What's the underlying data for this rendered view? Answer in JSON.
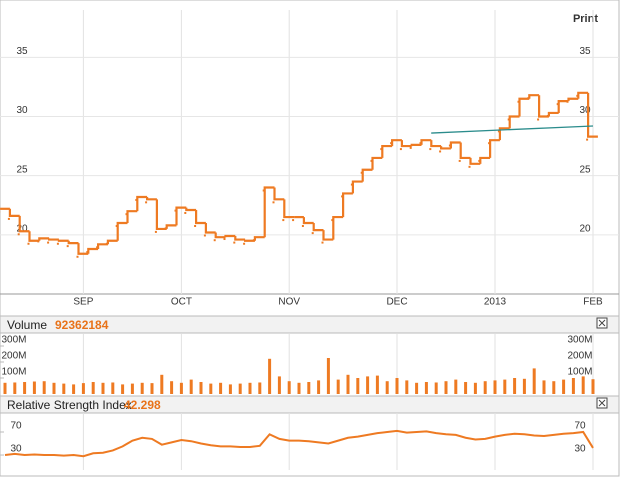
{
  "print_label": "Print",
  "chart_data": [
    {
      "type": "ohlc-step",
      "color": "#ee7a22",
      "categories": [
        null,
        null,
        null,
        null,
        null,
        null,
        null,
        null,
        "SEP",
        null,
        null,
        null,
        null,
        null,
        null,
        null,
        null,
        null,
        "OCT",
        null,
        null,
        null,
        null,
        null,
        null,
        null,
        null,
        null,
        null,
        "NOV",
        null,
        null,
        null,
        null,
        null,
        null,
        null,
        null,
        null,
        null,
        "DEC",
        null,
        null,
        null,
        null,
        null,
        null,
        null,
        null,
        null,
        "2013",
        null,
        null,
        null,
        null,
        null,
        null,
        null,
        null,
        null,
        "FEB"
      ],
      "values": [
        22.2,
        21.6,
        20.3,
        19.5,
        19.7,
        19.6,
        19.5,
        19.3,
        18.4,
        18.8,
        19.2,
        19.5,
        21.0,
        22.0,
        23.2,
        23.0,
        20.5,
        20.8,
        22.3,
        22.1,
        21.0,
        20.2,
        19.8,
        19.9,
        19.6,
        19.5,
        19.8,
        24.0,
        23.0,
        21.5,
        21.5,
        21.0,
        20.4,
        19.6,
        21.5,
        23.5,
        24.5,
        25.5,
        26.5,
        27.5,
        28.0,
        27.5,
        27.6,
        28.0,
        27.5,
        27.3,
        27.8,
        26.5,
        26.0,
        26.5,
        28.0,
        29.0,
        30.0,
        31.5,
        31.8,
        30.0,
        30.3,
        31.3,
        31.5,
        32.0,
        28.3
      ],
      "trendline": {
        "values": [
          28.6,
          29.2
        ],
        "color": "#2b8c8c"
      },
      "ylim": [
        15,
        39
      ],
      "yticks": [
        20,
        25,
        30,
        35
      ],
      "grid": true
    },
    {
      "type": "bar",
      "title": "Volume",
      "color": "#ee7a22",
      "values": [
        70000000,
        72000000,
        75000000,
        78000000,
        80000000,
        70000000,
        65000000,
        60000000,
        68000000,
        75000000,
        70000000,
        72000000,
        60000000,
        65000000,
        70000000,
        68000000,
        120000000,
        80000000,
        70000000,
        90000000,
        75000000,
        65000000,
        70000000,
        60000000,
        65000000,
        70000000,
        72000000,
        220000000,
        110000000,
        80000000,
        70000000,
        75000000,
        85000000,
        225000000,
        90000000,
        120000000,
        100000000,
        110000000,
        115000000,
        80000000,
        100000000,
        85000000,
        70000000,
        75000000,
        72000000,
        80000000,
        90000000,
        75000000,
        70000000,
        80000000,
        85000000,
        90000000,
        100000000,
        95000000,
        160000000,
        85000000,
        80000000,
        90000000,
        100000000,
        110000000,
        92362184
      ],
      "ylim": [
        0,
        375000000
      ],
      "yticks": [
        {
          "value": 100000000,
          "label": "100M"
        },
        {
          "value": 200000000,
          "label": "200M"
        },
        {
          "value": 300000000,
          "label": "300M"
        }
      ]
    },
    {
      "type": "line",
      "title": "Relative Strength Index",
      "color": "#ee7a22",
      "values": [
        30,
        32,
        30,
        31,
        30,
        30,
        29,
        30,
        28,
        33,
        34,
        38,
        45,
        55,
        60,
        58,
        48,
        52,
        56,
        54,
        50,
        47,
        45,
        45,
        44,
        44,
        46,
        66,
        58,
        55,
        55,
        54,
        52,
        50,
        55,
        60,
        62,
        65,
        68,
        70,
        72,
        69,
        70,
        71,
        68,
        66,
        65,
        60,
        57,
        58,
        62,
        65,
        67,
        66,
        64,
        63,
        65,
        67,
        68,
        70,
        42.298
      ],
      "ylim": [
        4,
        103
      ],
      "yticks": [
        30,
        70
      ]
    }
  ]
}
